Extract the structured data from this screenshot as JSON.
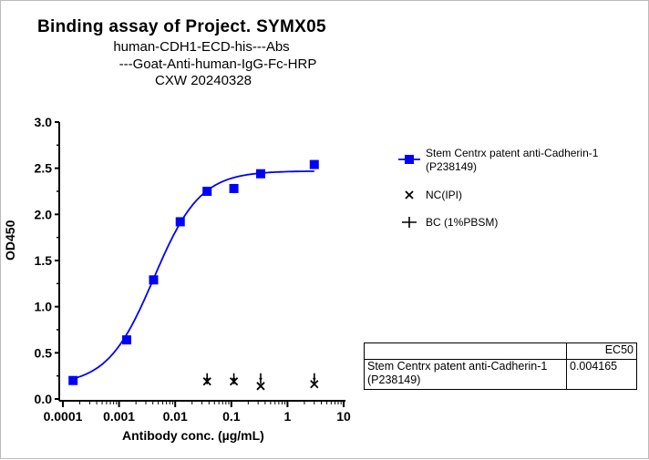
{
  "chart_data": {
    "type": "scatter",
    "title": "Binding assay of  Project. SYMX05",
    "subtitle": [
      "human-CDH1-ECD-his---Abs",
      "---Goat-Anti-human-IgG-Fc-HRP",
      "CXW   20240328"
    ],
    "xlabel": "Antibody conc. (µg/mL)",
    "ylabel": "OD450",
    "xscale": "log",
    "xlim": [
      0.0001,
      10
    ],
    "ylim": [
      0,
      3.0
    ],
    "xticks": [
      "0.0001",
      "0.001",
      "0.01",
      "0.1",
      "1",
      "10"
    ],
    "yticks": [
      "0.0",
      "0.5",
      "1.0",
      "1.5",
      "2.0",
      "2.5",
      "3.0"
    ],
    "legend_position": "right",
    "series": [
      {
        "name": "Stem Centrx patent anti-Cadherin-1\n(P238149)",
        "marker": "square",
        "color": "#0000ff",
        "fit": "4PL",
        "x": [
          0.000152,
          0.00137,
          0.00412,
          0.0123,
          0.037,
          0.111,
          0.333,
          3
        ],
        "y": [
          0.2,
          0.64,
          1.29,
          1.92,
          2.25,
          2.28,
          2.44,
          2.54
        ]
      },
      {
        "name": "NC(IPI)",
        "marker": "x",
        "color": "#000000",
        "x": [
          0.037,
          0.111,
          0.333,
          3
        ],
        "y": [
          0.19,
          0.19,
          0.14,
          0.16
        ]
      },
      {
        "name": "BC (1%PBSM)",
        "marker": "plus",
        "color": "#000000",
        "x": [
          0.037,
          0.111,
          0.333,
          3
        ],
        "y": [
          0.2,
          0.2,
          0.2,
          0.2
        ]
      }
    ],
    "fit_params": {
      "bottom": 0.15,
      "top": 2.47,
      "hill": 1.05
    },
    "table": {
      "header": [
        "",
        "EC50"
      ],
      "rows": [
        [
          "Stem Centrx patent anti-Cadherin-1\n(P238149)",
          "0.004165"
        ]
      ]
    }
  }
}
